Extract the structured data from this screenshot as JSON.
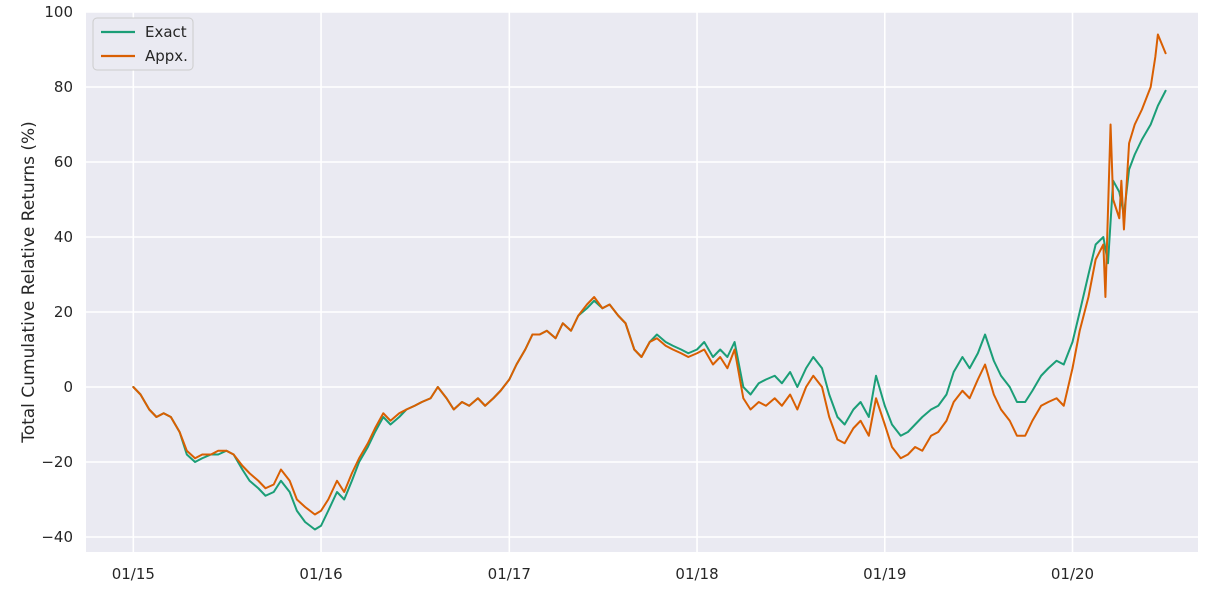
{
  "chart_data": {
    "type": "line",
    "title": "",
    "xlabel": "",
    "ylabel": "Total Cumulative Relative Returns (%)",
    "x_ticks": [
      "01/15",
      "01/16",
      "01/17",
      "01/18",
      "01/19",
      "01/20"
    ],
    "x_range": [
      "2014-10-01",
      "2020-09-01"
    ],
    "y_ticks": [
      -40,
      -20,
      0,
      20,
      40,
      60,
      80,
      100
    ],
    "ylim": [
      -44,
      100
    ],
    "grid": true,
    "legend_position": "top-left",
    "colors": {
      "background": "#eaeaf2",
      "grid": "#ffffff",
      "exact": "#1b9e77",
      "appx": "#d95f02"
    },
    "series": [
      {
        "name": "Exact",
        "color": "#1b9e77",
        "points": [
          [
            "2015-01-01",
            0
          ],
          [
            "2015-01-15",
            -2
          ],
          [
            "2015-02-01",
            -6
          ],
          [
            "2015-02-15",
            -8
          ],
          [
            "2015-03-01",
            -7
          ],
          [
            "2015-03-15",
            -8
          ],
          [
            "2015-04-01",
            -12
          ],
          [
            "2015-04-15",
            -18
          ],
          [
            "2015-05-01",
            -20
          ],
          [
            "2015-05-15",
            -19
          ],
          [
            "2015-06-01",
            -18
          ],
          [
            "2015-06-15",
            -18
          ],
          [
            "2015-07-01",
            -17
          ],
          [
            "2015-07-15",
            -18
          ],
          [
            "2015-08-01",
            -22
          ],
          [
            "2015-08-15",
            -25
          ],
          [
            "2015-09-01",
            -27
          ],
          [
            "2015-09-15",
            -29
          ],
          [
            "2015-10-01",
            -28
          ],
          [
            "2015-10-15",
            -25
          ],
          [
            "2015-11-01",
            -28
          ],
          [
            "2015-11-15",
            -33
          ],
          [
            "2015-12-01",
            -36
          ],
          [
            "2015-12-20",
            -38
          ],
          [
            "2016-01-01",
            -37
          ],
          [
            "2016-01-15",
            -33
          ],
          [
            "2016-02-01",
            -28
          ],
          [
            "2016-02-15",
            -30
          ],
          [
            "2016-03-01",
            -25
          ],
          [
            "2016-03-15",
            -20
          ],
          [
            "2016-04-01",
            -16
          ],
          [
            "2016-04-15",
            -12
          ],
          [
            "2016-05-01",
            -8
          ],
          [
            "2016-05-15",
            -10
          ],
          [
            "2016-06-01",
            -8
          ],
          [
            "2016-06-15",
            -6
          ],
          [
            "2016-07-01",
            -5
          ],
          [
            "2016-07-15",
            -4
          ],
          [
            "2016-08-01",
            -3
          ],
          [
            "2016-08-15",
            0
          ],
          [
            "2016-09-01",
            -3
          ],
          [
            "2016-09-15",
            -6
          ],
          [
            "2016-10-01",
            -4
          ],
          [
            "2016-10-15",
            -5
          ],
          [
            "2016-11-01",
            -3
          ],
          [
            "2016-11-15",
            -5
          ],
          [
            "2016-12-01",
            -3
          ],
          [
            "2016-12-15",
            -1
          ],
          [
            "2017-01-01",
            2
          ],
          [
            "2017-01-15",
            6
          ],
          [
            "2017-02-01",
            10
          ],
          [
            "2017-02-15",
            14
          ],
          [
            "2017-03-01",
            14
          ],
          [
            "2017-03-15",
            15
          ],
          [
            "2017-04-01",
            13
          ],
          [
            "2017-04-15",
            17
          ],
          [
            "2017-05-01",
            15
          ],
          [
            "2017-05-15",
            19
          ],
          [
            "2017-06-01",
            21
          ],
          [
            "2017-06-15",
            23
          ],
          [
            "2017-07-01",
            21
          ],
          [
            "2017-07-15",
            22
          ],
          [
            "2017-08-01",
            19
          ],
          [
            "2017-08-15",
            17
          ],
          [
            "2017-09-01",
            10
          ],
          [
            "2017-09-15",
            8
          ],
          [
            "2017-10-01",
            12
          ],
          [
            "2017-10-15",
            14
          ],
          [
            "2017-11-01",
            12
          ],
          [
            "2017-11-15",
            11
          ],
          [
            "2017-12-01",
            10
          ],
          [
            "2017-12-15",
            9
          ],
          [
            "2018-01-01",
            10
          ],
          [
            "2018-01-15",
            12
          ],
          [
            "2018-02-01",
            8
          ],
          [
            "2018-02-15",
            10
          ],
          [
            "2018-03-01",
            8
          ],
          [
            "2018-03-15",
            12
          ],
          [
            "2018-04-01",
            0
          ],
          [
            "2018-04-15",
            -2
          ],
          [
            "2018-05-01",
            1
          ],
          [
            "2018-05-15",
            2
          ],
          [
            "2018-06-01",
            3
          ],
          [
            "2018-06-15",
            1
          ],
          [
            "2018-07-01",
            4
          ],
          [
            "2018-07-15",
            0
          ],
          [
            "2018-08-01",
            5
          ],
          [
            "2018-08-15",
            8
          ],
          [
            "2018-09-01",
            5
          ],
          [
            "2018-09-15",
            -2
          ],
          [
            "2018-10-01",
            -8
          ],
          [
            "2018-10-15",
            -10
          ],
          [
            "2018-11-01",
            -6
          ],
          [
            "2018-11-15",
            -4
          ],
          [
            "2018-12-01",
            -8
          ],
          [
            "2018-12-15",
            3
          ],
          [
            "2019-01-01",
            -5
          ],
          [
            "2019-01-15",
            -10
          ],
          [
            "2019-02-01",
            -13
          ],
          [
            "2019-02-15",
            -12
          ],
          [
            "2019-03-01",
            -10
          ],
          [
            "2019-03-15",
            -8
          ],
          [
            "2019-04-01",
            -6
          ],
          [
            "2019-04-15",
            -5
          ],
          [
            "2019-05-01",
            -2
          ],
          [
            "2019-05-15",
            4
          ],
          [
            "2019-06-01",
            8
          ],
          [
            "2019-06-15",
            5
          ],
          [
            "2019-07-01",
            9
          ],
          [
            "2019-07-15",
            14
          ],
          [
            "2019-08-01",
            7
          ],
          [
            "2019-08-15",
            3
          ],
          [
            "2019-09-01",
            0
          ],
          [
            "2019-09-15",
            -4
          ],
          [
            "2019-10-01",
            -4
          ],
          [
            "2019-10-15",
            -1
          ],
          [
            "2019-11-01",
            3
          ],
          [
            "2019-11-15",
            5
          ],
          [
            "2019-12-01",
            7
          ],
          [
            "2019-12-15",
            6
          ],
          [
            "2020-01-01",
            12
          ],
          [
            "2020-01-15",
            20
          ],
          [
            "2020-02-01",
            30
          ],
          [
            "2020-02-15",
            38
          ],
          [
            "2020-03-01",
            40
          ],
          [
            "2020-03-10",
            33
          ],
          [
            "2020-03-20",
            55
          ],
          [
            "2020-04-01",
            52
          ],
          [
            "2020-04-10",
            46
          ],
          [
            "2020-04-20",
            58
          ],
          [
            "2020-05-01",
            62
          ],
          [
            "2020-05-15",
            66
          ],
          [
            "2020-06-01",
            70
          ],
          [
            "2020-06-15",
            75
          ],
          [
            "2020-06-30",
            79
          ]
        ]
      },
      {
        "name": "Appx.",
        "color": "#d95f02",
        "points": [
          [
            "2015-01-01",
            0
          ],
          [
            "2015-01-15",
            -2
          ],
          [
            "2015-02-01",
            -6
          ],
          [
            "2015-02-15",
            -8
          ],
          [
            "2015-03-01",
            -7
          ],
          [
            "2015-03-15",
            -8
          ],
          [
            "2015-04-01",
            -12
          ],
          [
            "2015-04-15",
            -17
          ],
          [
            "2015-05-01",
            -19
          ],
          [
            "2015-05-15",
            -18
          ],
          [
            "2015-06-01",
            -18
          ],
          [
            "2015-06-15",
            -17
          ],
          [
            "2015-07-01",
            -17
          ],
          [
            "2015-07-15",
            -18
          ],
          [
            "2015-08-01",
            -21
          ],
          [
            "2015-08-15",
            -23
          ],
          [
            "2015-09-01",
            -25
          ],
          [
            "2015-09-15",
            -27
          ],
          [
            "2015-10-01",
            -26
          ],
          [
            "2015-10-15",
            -22
          ],
          [
            "2015-11-01",
            -25
          ],
          [
            "2015-11-15",
            -30
          ],
          [
            "2015-12-01",
            -32
          ],
          [
            "2015-12-20",
            -34
          ],
          [
            "2016-01-01",
            -33
          ],
          [
            "2016-01-15",
            -30
          ],
          [
            "2016-02-01",
            -25
          ],
          [
            "2016-02-15",
            -28
          ],
          [
            "2016-03-01",
            -23
          ],
          [
            "2016-03-15",
            -19
          ],
          [
            "2016-04-01",
            -15
          ],
          [
            "2016-04-15",
            -11
          ],
          [
            "2016-05-01",
            -7
          ],
          [
            "2016-05-15",
            -9
          ],
          [
            "2016-06-01",
            -7
          ],
          [
            "2016-06-15",
            -6
          ],
          [
            "2016-07-01",
            -5
          ],
          [
            "2016-07-15",
            -4
          ],
          [
            "2016-08-01",
            -3
          ],
          [
            "2016-08-15",
            0
          ],
          [
            "2016-09-01",
            -3
          ],
          [
            "2016-09-15",
            -6
          ],
          [
            "2016-10-01",
            -4
          ],
          [
            "2016-10-15",
            -5
          ],
          [
            "2016-11-01",
            -3
          ],
          [
            "2016-11-15",
            -5
          ],
          [
            "2016-12-01",
            -3
          ],
          [
            "2016-12-15",
            -1
          ],
          [
            "2017-01-01",
            2
          ],
          [
            "2017-01-15",
            6
          ],
          [
            "2017-02-01",
            10
          ],
          [
            "2017-02-15",
            14
          ],
          [
            "2017-03-01",
            14
          ],
          [
            "2017-03-15",
            15
          ],
          [
            "2017-04-01",
            13
          ],
          [
            "2017-04-15",
            17
          ],
          [
            "2017-05-01",
            15
          ],
          [
            "2017-05-15",
            19
          ],
          [
            "2017-06-01",
            22
          ],
          [
            "2017-06-15",
            24
          ],
          [
            "2017-07-01",
            21
          ],
          [
            "2017-07-15",
            22
          ],
          [
            "2017-08-01",
            19
          ],
          [
            "2017-08-15",
            17
          ],
          [
            "2017-09-01",
            10
          ],
          [
            "2017-09-15",
            8
          ],
          [
            "2017-10-01",
            12
          ],
          [
            "2017-10-15",
            13
          ],
          [
            "2017-11-01",
            11
          ],
          [
            "2017-11-15",
            10
          ],
          [
            "2017-12-01",
            9
          ],
          [
            "2017-12-15",
            8
          ],
          [
            "2018-01-01",
            9
          ],
          [
            "2018-01-15",
            10
          ],
          [
            "2018-02-01",
            6
          ],
          [
            "2018-02-15",
            8
          ],
          [
            "2018-03-01",
            5
          ],
          [
            "2018-03-15",
            10
          ],
          [
            "2018-04-01",
            -3
          ],
          [
            "2018-04-15",
            -6
          ],
          [
            "2018-05-01",
            -4
          ],
          [
            "2018-05-15",
            -5
          ],
          [
            "2018-06-01",
            -3
          ],
          [
            "2018-06-15",
            -5
          ],
          [
            "2018-07-01",
            -2
          ],
          [
            "2018-07-15",
            -6
          ],
          [
            "2018-08-01",
            0
          ],
          [
            "2018-08-15",
            3
          ],
          [
            "2018-09-01",
            0
          ],
          [
            "2018-09-15",
            -8
          ],
          [
            "2018-10-01",
            -14
          ],
          [
            "2018-10-15",
            -15
          ],
          [
            "2018-11-01",
            -11
          ],
          [
            "2018-11-15",
            -9
          ],
          [
            "2018-12-01",
            -13
          ],
          [
            "2018-12-15",
            -3
          ],
          [
            "2019-01-01",
            -10
          ],
          [
            "2019-01-15",
            -16
          ],
          [
            "2019-02-01",
            -19
          ],
          [
            "2019-02-15",
            -18
          ],
          [
            "2019-03-01",
            -16
          ],
          [
            "2019-03-15",
            -17
          ],
          [
            "2019-04-01",
            -13
          ],
          [
            "2019-04-15",
            -12
          ],
          [
            "2019-05-01",
            -9
          ],
          [
            "2019-05-15",
            -4
          ],
          [
            "2019-06-01",
            -1
          ],
          [
            "2019-06-15",
            -3
          ],
          [
            "2019-07-01",
            2
          ],
          [
            "2019-07-15",
            6
          ],
          [
            "2019-08-01",
            -2
          ],
          [
            "2019-08-15",
            -6
          ],
          [
            "2019-09-01",
            -9
          ],
          [
            "2019-09-15",
            -13
          ],
          [
            "2019-10-01",
            -13
          ],
          [
            "2019-10-15",
            -9
          ],
          [
            "2019-11-01",
            -5
          ],
          [
            "2019-11-15",
            -4
          ],
          [
            "2019-12-01",
            -3
          ],
          [
            "2019-12-15",
            -5
          ],
          [
            "2020-01-01",
            5
          ],
          [
            "2020-01-15",
            15
          ],
          [
            "2020-02-01",
            24
          ],
          [
            "2020-02-15",
            34
          ],
          [
            "2020-03-01",
            38
          ],
          [
            "2020-03-05",
            24
          ],
          [
            "2020-03-15",
            70
          ],
          [
            "2020-03-20",
            50
          ],
          [
            "2020-04-01",
            45
          ],
          [
            "2020-04-05",
            55
          ],
          [
            "2020-04-10",
            42
          ],
          [
            "2020-04-20",
            65
          ],
          [
            "2020-05-01",
            70
          ],
          [
            "2020-05-15",
            74
          ],
          [
            "2020-06-01",
            80
          ],
          [
            "2020-06-10",
            88
          ],
          [
            "2020-06-15",
            94
          ],
          [
            "2020-06-30",
            89
          ]
        ]
      }
    ]
  }
}
